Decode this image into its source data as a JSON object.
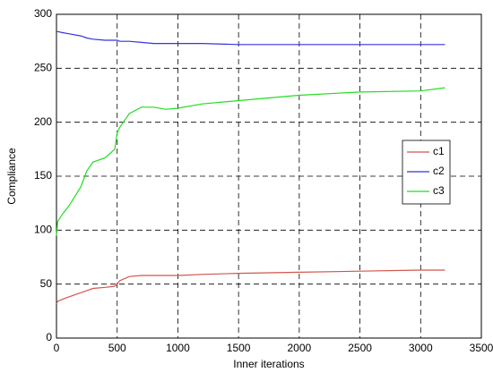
{
  "chart_data": {
    "type": "line",
    "xlabel": "Inner iterations",
    "ylabel": "Compliance",
    "x": [
      0,
      10,
      50,
      100,
      200,
      250,
      300,
      400,
      480,
      500,
      520,
      600,
      700,
      800,
      900,
      1000,
      1200,
      1500,
      2000,
      2500,
      3000,
      3200
    ],
    "series": [
      {
        "name": "c1",
        "color": "#d0564c",
        "values": [
          32,
          34,
          36,
          38,
          42,
          44,
          46,
          47,
          48,
          50,
          53,
          57,
          58,
          58,
          58,
          58,
          59,
          60,
          61,
          62,
          63,
          63
        ]
      },
      {
        "name": "c2",
        "color": "#3434e0",
        "values": [
          284,
          284,
          283,
          282,
          280,
          278,
          277,
          276,
          276,
          276,
          275,
          275,
          274,
          273,
          273,
          273,
          273,
          272,
          272,
          272,
          272,
          272
        ]
      },
      {
        "name": "c3",
        "color": "#22dd22",
        "values": [
          95,
          108,
          115,
          122,
          140,
          155,
          163,
          167,
          175,
          190,
          195,
          208,
          214,
          214,
          212,
          213,
          217,
          220,
          225,
          228,
          229,
          232
        ]
      }
    ],
    "xlim": [
      0,
      3500
    ],
    "xticks": [
      0,
      500,
      1000,
      1500,
      2000,
      2500,
      3000,
      3500
    ],
    "ylim": [
      0,
      300
    ],
    "yticks": [
      0,
      50,
      100,
      150,
      200,
      250,
      300
    ],
    "grid": true,
    "legend": "east"
  }
}
